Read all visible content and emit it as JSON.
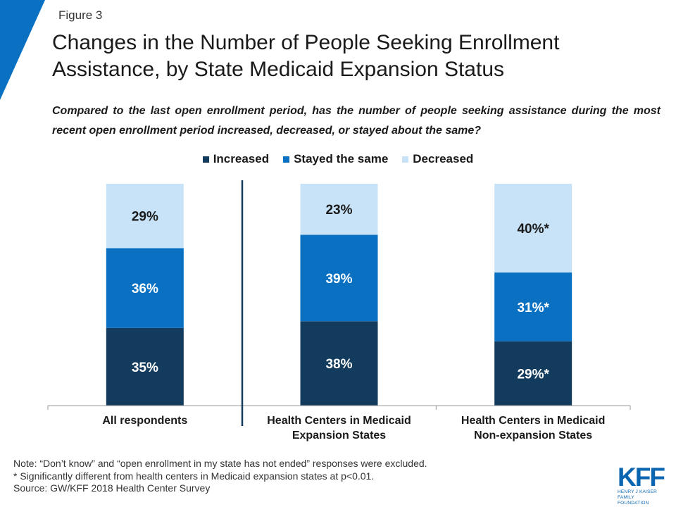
{
  "figure_label": "Figure 3",
  "title_line1": "Changes in the Number of People Seeking Enrollment",
  "title_line2": "Assistance, by State Medicaid Expansion Status",
  "question": "Compared to the last open enrollment period, has the number of people seeking assistance during the most recent open enrollment period increased, decreased, or stayed about the same?",
  "colors": {
    "increased": "#133b5e",
    "stayed": "#0a71c2",
    "decreased": "#c8e3f7",
    "accent": "#0a71c2"
  },
  "chart_data": {
    "type": "bar",
    "stacked": true,
    "categories": [
      [
        "All respondents"
      ],
      [
        "Health Centers in Medicaid",
        "Expansion States"
      ],
      [
        "Health Centers in Medicaid",
        "Non-expansion States"
      ]
    ],
    "series": [
      {
        "name": "Increased",
        "values": [
          35,
          38,
          29
        ],
        "labels": [
          "35%",
          "38%",
          "29%*"
        ]
      },
      {
        "name": "Stayed the same",
        "values": [
          36,
          39,
          31
        ],
        "labels": [
          "36%",
          "39%",
          "31%*"
        ]
      },
      {
        "name": "Decreased",
        "values": [
          29,
          23,
          40
        ],
        "labels": [
          "29%",
          "23%",
          "40%*"
        ]
      }
    ],
    "ylim": [
      0,
      100
    ],
    "legend_position": "top"
  },
  "notes": [
    "Note: “Don’t know” and “open enrollment in my state has not ended” responses were excluded.",
    "* Significantly different from health centers in Medicaid expansion states at p<0.01.",
    "Source: GW/KFF 2018 Health Center Survey"
  ],
  "logo": {
    "main": "KFF",
    "sub1": "HENRY J KAISER",
    "sub2": "FAMILY FOUNDATION"
  }
}
